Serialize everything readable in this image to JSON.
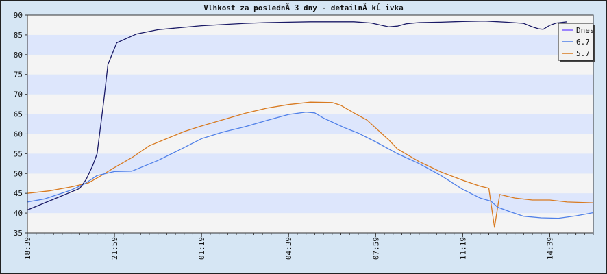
{
  "chart_data": {
    "type": "line",
    "title": "Vlhkost za poslednĂ­ 3 dny - detailnĂ­ kĹ ivka",
    "xlabel": "",
    "ylabel": "",
    "ylim": [
      35,
      90
    ],
    "yticks": [
      35,
      40,
      45,
      50,
      55,
      60,
      65,
      70,
      75,
      80,
      85,
      90
    ],
    "xlim": [
      0,
      1300
    ],
    "xticks": [
      {
        "label": "18:39",
        "x": 0
      },
      {
        "label": "21:59",
        "x": 200
      },
      {
        "label": "01:19",
        "x": 400
      },
      {
        "label": "04:39",
        "x": 600
      },
      {
        "label": "07:59",
        "x": 800
      },
      {
        "label": "11:19",
        "x": 1000
      },
      {
        "label": "14:39",
        "x": 1200
      }
    ],
    "grid": true,
    "legend_position": "top-right",
    "series": [
      {
        "name": "Dnes",
        "color": "#1a1a66",
        "legend_color": "#7f5fff",
        "points": [
          [
            0,
            40.8
          ],
          [
            60,
            43.5
          ],
          [
            120,
            46.2
          ],
          [
            135,
            48.5
          ],
          [
            150,
            52
          ],
          [
            160,
            55
          ],
          [
            175,
            68
          ],
          [
            185,
            77.5
          ],
          [
            205,
            83
          ],
          [
            250,
            85.2
          ],
          [
            300,
            86.3
          ],
          [
            350,
            86.8
          ],
          [
            400,
            87.3
          ],
          [
            450,
            87.6
          ],
          [
            500,
            87.9
          ],
          [
            550,
            88.1
          ],
          [
            600,
            88.2
          ],
          [
            650,
            88.3
          ],
          [
            700,
            88.3
          ],
          [
            750,
            88.3
          ],
          [
            790,
            88
          ],
          [
            810,
            87.5
          ],
          [
            830,
            87.0
          ],
          [
            850,
            87.2
          ],
          [
            870,
            87.8
          ],
          [
            900,
            88.1
          ],
          [
            950,
            88.2
          ],
          [
            1000,
            88.4
          ],
          [
            1050,
            88.5
          ],
          [
            1100,
            88.2
          ],
          [
            1140,
            87.9
          ],
          [
            1160,
            87.0
          ],
          [
            1175,
            86.5
          ],
          [
            1185,
            86.4
          ],
          [
            1200,
            87.4
          ],
          [
            1215,
            88.0
          ],
          [
            1240,
            88.3
          ]
        ]
      },
      {
        "name": "6.7",
        "color": "#5080e8",
        "legend_color": "#5080e8",
        "points": [
          [
            0,
            42.8
          ],
          [
            40,
            43.6
          ],
          [
            100,
            45.8
          ],
          [
            130,
            47.3
          ],
          [
            160,
            49.5
          ],
          [
            200,
            50.5
          ],
          [
            240,
            50.6
          ],
          [
            300,
            53.3
          ],
          [
            350,
            56.0
          ],
          [
            400,
            58.8
          ],
          [
            450,
            60.5
          ],
          [
            500,
            61.8
          ],
          [
            550,
            63.4
          ],
          [
            600,
            64.9
          ],
          [
            640,
            65.5
          ],
          [
            660,
            65.3
          ],
          [
            680,
            64.0
          ],
          [
            700,
            63.0
          ],
          [
            730,
            61.5
          ],
          [
            760,
            60.2
          ],
          [
            800,
            58.0
          ],
          [
            850,
            55.0
          ],
          [
            900,
            52.5
          ],
          [
            950,
            49.5
          ],
          [
            1000,
            46.0
          ],
          [
            1040,
            43.8
          ],
          [
            1065,
            43.0
          ],
          [
            1080,
            41.5
          ],
          [
            1110,
            40.3
          ],
          [
            1140,
            39.2
          ],
          [
            1180,
            38.8
          ],
          [
            1220,
            38.7
          ],
          [
            1260,
            39.3
          ],
          [
            1300,
            40.1
          ]
        ]
      },
      {
        "name": "5.7",
        "color": "#d87a20",
        "legend_color": "#d87a20",
        "points": [
          [
            0,
            45.0
          ],
          [
            50,
            45.6
          ],
          [
            100,
            46.6
          ],
          [
            140,
            47.6
          ],
          [
            170,
            49.5
          ],
          [
            200,
            51.5
          ],
          [
            240,
            54.0
          ],
          [
            280,
            57.0
          ],
          [
            320,
            58.8
          ],
          [
            360,
            60.6
          ],
          [
            400,
            62.0
          ],
          [
            450,
            63.6
          ],
          [
            500,
            65.2
          ],
          [
            550,
            66.5
          ],
          [
            600,
            67.4
          ],
          [
            650,
            68.0
          ],
          [
            700,
            67.9
          ],
          [
            720,
            67.2
          ],
          [
            750,
            65.3
          ],
          [
            780,
            63.5
          ],
          [
            800,
            61.5
          ],
          [
            830,
            58.5
          ],
          [
            850,
            56.2
          ],
          [
            900,
            53.0
          ],
          [
            950,
            50.4
          ],
          [
            1000,
            48.3
          ],
          [
            1040,
            46.8
          ],
          [
            1060,
            46.3
          ],
          [
            1073,
            36.4
          ],
          [
            1085,
            44.7
          ],
          [
            1120,
            43.8
          ],
          [
            1160,
            43.3
          ],
          [
            1200,
            43.3
          ],
          [
            1240,
            42.8
          ],
          [
            1300,
            42.6
          ]
        ]
      }
    ]
  }
}
